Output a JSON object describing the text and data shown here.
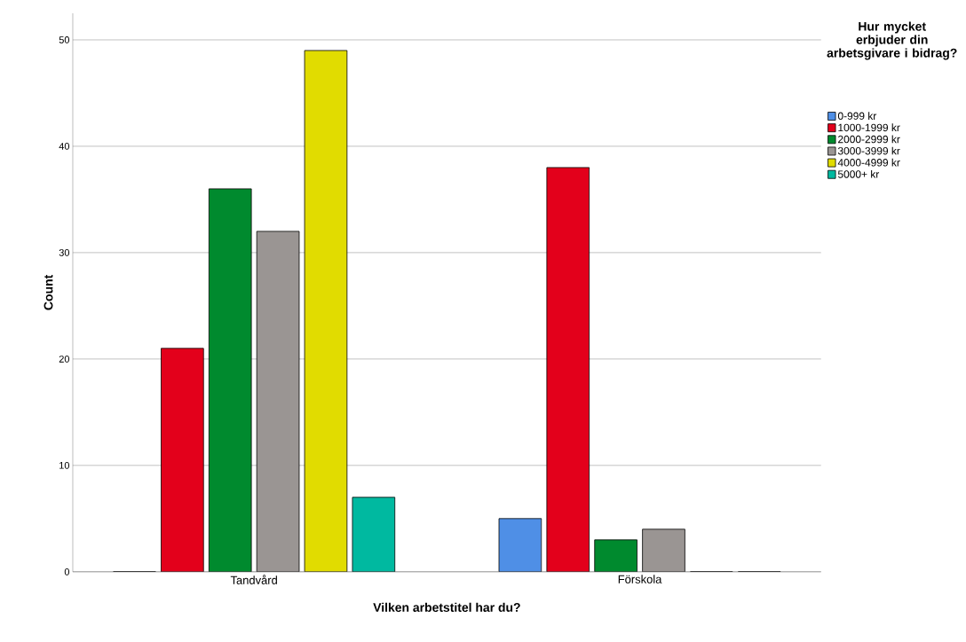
{
  "chart_data": {
    "type": "bar",
    "xlabel": "Vilken arbetstitel har du?",
    "ylabel": "Count",
    "legend_title": "Hur mycket erbjuder din arbetsgivare i bidrag?",
    "categories": [
      "Tandvård",
      "Förskola"
    ],
    "series": [
      {
        "name": "0-999 kr",
        "color": "#4f8fe6",
        "values": [
          0,
          5
        ]
      },
      {
        "name": "1000-1999 kr",
        "color": "#e3001b",
        "values": [
          21,
          38
        ]
      },
      {
        "name": "2000-2999 kr",
        "color": "#008a2e",
        "values": [
          36,
          3
        ]
      },
      {
        "name": "3000-3999 kr",
        "color": "#9a9593",
        "values": [
          32,
          4
        ]
      },
      {
        "name": "4000-4999 kr",
        "color": "#e1dc00",
        "values": [
          49,
          0
        ]
      },
      {
        "name": "5000+ kr",
        "color": "#00b9a0",
        "values": [
          7,
          0
        ]
      }
    ],
    "ylim": [
      0,
      52.5
    ],
    "yticks": [
      0,
      10,
      20,
      30,
      40,
      50
    ],
    "grid": "y",
    "legend": "right"
  }
}
